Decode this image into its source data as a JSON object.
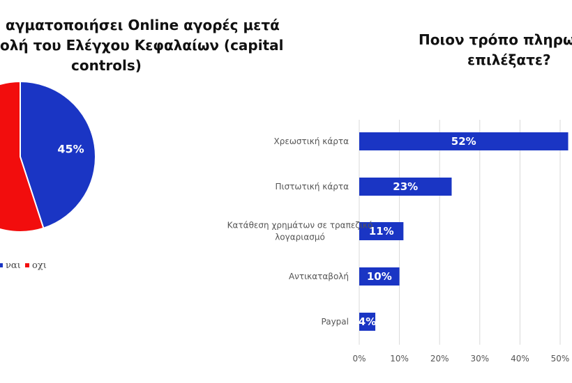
{
  "chart_data": [
    {
      "type": "pie",
      "title_lines": [
        "αγματοποιήσει Online αγορές μετά",
        "ολή του Ελέγχου Κεφαλαίων (capital",
        "controls)"
      ],
      "slices": [
        {
          "name": "ναι",
          "value": 45,
          "label": "45%",
          "color": "#1a35c4"
        },
        {
          "name": "οχι",
          "value": 55,
          "label": "",
          "color": "#f20d0d"
        }
      ],
      "legend_placement": "bottom"
    },
    {
      "type": "bar",
      "orientation": "horizontal",
      "title_lines": [
        "Ποιον τρόπο πληρω",
        "επιλέξατε?"
      ],
      "categories": [
        "Χρεωστική κάρτα",
        "Πιστωτική κάρτα",
        "Κατάθεση χρημάτων σε τραπεζικό λογαριασμό",
        "Αντικαταβολή",
        "Paypal"
      ],
      "category_lines": [
        [
          "Χρεωστική κάρτα"
        ],
        [
          "Πιστωτική κάρτα"
        ],
        [
          "Κατάθεση χρημάτων σε τραπεζικό",
          "λογαριασμό"
        ],
        [
          "Αντικαταβολή"
        ],
        [
          "Paypal"
        ]
      ],
      "values": [
        52,
        23,
        11,
        10,
        4
      ],
      "data_labels": [
        "52%",
        "23%",
        "11%",
        "10%",
        "4%"
      ],
      "xticks": [
        "0%",
        "10%",
        "20%",
        "30%",
        "40%",
        "50%"
      ],
      "xlim": [
        0,
        50
      ],
      "color": "#1a35c4",
      "grid": true
    }
  ]
}
